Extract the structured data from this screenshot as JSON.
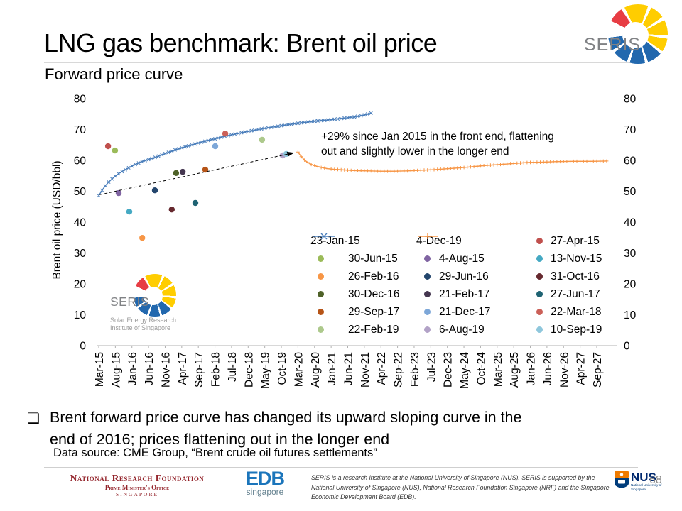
{
  "header": {
    "title": "LNG gas benchmark: Brent oil price",
    "subtitle": "Forward price curve",
    "logo_text": "SERIS"
  },
  "chart_data": {
    "type": "line",
    "y_axis_title": "Brent oil price (USD/bbl)",
    "ylim": [
      0,
      80
    ],
    "y_ticks": [
      80,
      70,
      60,
      50,
      40,
      30,
      20,
      10,
      0
    ],
    "y_axis_sides": [
      "left",
      "right"
    ],
    "months_per_tick": 5,
    "x_tick_labels": [
      "Mar-15",
      "Aug-15",
      "Jan-16",
      "Jun-16",
      "Nov-16",
      "Apr-17",
      "Sep-17",
      "Feb-18",
      "Jul-18",
      "Dec-18",
      "May-19",
      "Oct-19",
      "Mar-20",
      "Aug-20",
      "Jan-21",
      "Jun-21",
      "Nov-21",
      "Apr-22",
      "Sep-22",
      "Feb-23",
      "Jul-23",
      "Dec-23",
      "May-24",
      "Oct-24",
      "Mar-25",
      "Aug-25",
      "Jan-26",
      "Jun-26",
      "Nov-26",
      "Apr-27",
      "Sep-27"
    ],
    "annotation": {
      "line1": "+29% since Jan 2015 in the front end, flattening",
      "line2": "out and slightly lower in the longer end"
    },
    "series": [
      {
        "name": "23-Jan-15",
        "marker": "x",
        "color": "#4a7ebb",
        "points": [
          [
            0,
            48.6
          ],
          [
            1,
            50.3
          ],
          [
            2,
            51.8
          ],
          [
            3,
            53.0
          ],
          [
            4,
            54.0
          ],
          [
            5,
            54.9
          ],
          [
            6,
            55.7
          ],
          [
            7,
            56.4
          ],
          [
            8,
            57.0
          ],
          [
            9,
            57.6
          ],
          [
            11,
            58.7
          ],
          [
            13,
            59.6
          ],
          [
            15,
            60.3
          ],
          [
            17,
            61.0
          ],
          [
            19,
            61.8
          ],
          [
            21,
            62.6
          ],
          [
            23,
            63.4
          ],
          [
            26,
            64.4
          ],
          [
            29,
            65.3
          ],
          [
            32,
            66.2
          ],
          [
            35,
            67.0
          ],
          [
            38,
            67.8
          ],
          [
            41,
            68.5
          ],
          [
            44,
            69.2
          ],
          [
            47,
            69.8
          ],
          [
            50,
            70.4
          ],
          [
            53,
            70.9
          ],
          [
            56,
            71.4
          ],
          [
            59,
            71.9
          ],
          [
            62,
            72.3
          ],
          [
            65,
            72.7
          ],
          [
            68,
            73.0
          ],
          [
            71,
            73.3
          ],
          [
            74,
            73.7
          ],
          [
            77,
            74.1
          ],
          [
            79,
            74.5
          ],
          [
            81,
            75.0
          ],
          [
            82,
            75.3
          ]
        ]
      },
      {
        "name": "4-Dec-19",
        "marker": "+",
        "color": "#f79646",
        "points": [
          [
            60,
            62.7
          ],
          [
            61,
            61.2
          ],
          [
            62,
            60.1
          ],
          [
            63,
            59.3
          ],
          [
            64,
            58.7
          ],
          [
            65,
            58.3
          ],
          [
            67,
            57.7
          ],
          [
            69,
            57.3
          ],
          [
            71,
            57.1
          ],
          [
            74,
            56.9
          ],
          [
            77,
            56.7
          ],
          [
            81,
            56.6
          ],
          [
            85,
            56.5
          ],
          [
            89,
            56.5
          ],
          [
            93,
            56.6
          ],
          [
            97,
            56.8
          ],
          [
            101,
            57.0
          ],
          [
            105,
            57.3
          ],
          [
            109,
            57.6
          ],
          [
            113,
            58.0
          ],
          [
            117,
            58.4
          ],
          [
            121,
            58.7
          ],
          [
            125,
            59.0
          ],
          [
            129,
            59.3
          ],
          [
            133,
            59.4
          ],
          [
            138,
            59.6
          ],
          [
            143,
            59.7
          ],
          [
            148,
            59.7
          ],
          [
            153,
            59.8
          ]
        ]
      }
    ],
    "scatter": [
      {
        "name": "27-Apr-15",
        "color": "#c0504d",
        "month": 2.8,
        "value": 64.6
      },
      {
        "name": "30-Jun-15",
        "color": "#9bbb59",
        "month": 4.9,
        "value": 63.2
      },
      {
        "name": "4-Aug-15",
        "color": "#8064a2",
        "month": 6.0,
        "value": 49.4
      },
      {
        "name": "13-Nov-15",
        "color": "#45a9c3",
        "month": 9.2,
        "value": 43.4
      },
      {
        "name": "26-Feb-16",
        "color": "#f79646",
        "month": 13.1,
        "value": 34.9
      },
      {
        "name": "29-Jun-16",
        "color": "#24466d",
        "month": 16.9,
        "value": 50.3
      },
      {
        "name": "31-Oct-16",
        "color": "#66292f",
        "month": 22.0,
        "value": 44.1
      },
      {
        "name": "30-Dec-16",
        "color": "#4f6228",
        "month": 23.3,
        "value": 55.9
      },
      {
        "name": "21-Feb-17",
        "color": "#453750",
        "month": 25.3,
        "value": 56.3
      },
      {
        "name": "27-Jun-17",
        "color": "#1f6373",
        "month": 29.1,
        "value": 46.2
      },
      {
        "name": "29-Sep-17",
        "color": "#b65417",
        "month": 32.1,
        "value": 57.0
      },
      {
        "name": "21-Dec-17",
        "color": "#7da7d8",
        "month": 35.1,
        "value": 64.6
      },
      {
        "name": "22-Mar-18",
        "color": "#cb6058",
        "month": 38.1,
        "value": 68.7
      },
      {
        "name": "22-Feb-19",
        "color": "#adc98c",
        "month": 49.2,
        "value": 66.7
      },
      {
        "name": "6-Aug-19",
        "color": "#b2a2c7",
        "month": 55.4,
        "value": 61.6
      },
      {
        "name": "10-Sep-19",
        "color": "#8fc7dc",
        "month": 56.5,
        "value": 62.1
      }
    ],
    "arrow": {
      "from": [
        0.3,
        48.9
      ],
      "to": [
        56.8,
        62.0
      ]
    },
    "legend_columns": [
      [
        {
          "label": "23-Jan-15",
          "marker": "line-x",
          "color": "#4a7ebb"
        },
        {
          "label": "30-Jun-15",
          "marker": "dot",
          "color": "#9bbb59"
        },
        {
          "label": "26-Feb-16",
          "marker": "dot",
          "color": "#f79646"
        },
        {
          "label": "30-Dec-16",
          "marker": "dot",
          "color": "#4f6228"
        },
        {
          "label": "29-Sep-17",
          "marker": "dot",
          "color": "#b65417"
        },
        {
          "label": "22-Feb-19",
          "marker": "dot",
          "color": "#adc98c"
        }
      ],
      [
        {
          "label": "4-Dec-19",
          "marker": "line-plus",
          "color": "#f79646"
        },
        {
          "label": "4-Aug-15",
          "marker": "dot",
          "color": "#8064a2"
        },
        {
          "label": "29-Jun-16",
          "marker": "dot",
          "color": "#24466d"
        },
        {
          "label": "21-Feb-17",
          "marker": "dot",
          "color": "#453750"
        },
        {
          "label": "21-Dec-17",
          "marker": "dot",
          "color": "#7da7d8"
        },
        {
          "label": "6-Aug-19",
          "marker": "dot",
          "color": "#b2a2c7"
        }
      ],
      [
        {
          "label": "27-Apr-15",
          "marker": "dot",
          "color": "#c0504d"
        },
        {
          "label": "13-Nov-15",
          "marker": "dot",
          "color": "#45a9c3"
        },
        {
          "label": "31-Oct-16",
          "marker": "dot",
          "color": "#66292f"
        },
        {
          "label": "27-Jun-17",
          "marker": "dot",
          "color": "#1f6373"
        },
        {
          "label": "22-Mar-18",
          "marker": "dot",
          "color": "#cb6058"
        },
        {
          "label": "10-Sep-19",
          "marker": "dot",
          "color": "#8fc7dc"
        }
      ]
    ]
  },
  "inchart_logo": {
    "text": "SERIS",
    "line1": "Solar Energy Research",
    "line2": "Institute of Singapore"
  },
  "bullet": {
    "glyph": "❑",
    "line1": "Brent forward price curve has changed its upward sloping curve in the",
    "line2": "end of 2016; prices flattening out in the longer end"
  },
  "datasource": "Data source: CME Group, “Brent crude oil futures settlements”",
  "footer": {
    "nrf": {
      "line1": "National Research Foundation",
      "line2": "Prime Minister's Office",
      "line3": "Singapore"
    },
    "edb": {
      "line1": "EDB",
      "line2": "singapore"
    },
    "disclaimer": "SERIS is a research institute at the National University of Singapore (NUS). SERIS is supported by the National University of Singapore (NUS), National Research Foundation Singapore (NRF) and the Singapore Economic Development Board (EDB).",
    "nus": {
      "name": "NUS",
      "sub": "National University of Singapore"
    },
    "page_number": "68"
  }
}
